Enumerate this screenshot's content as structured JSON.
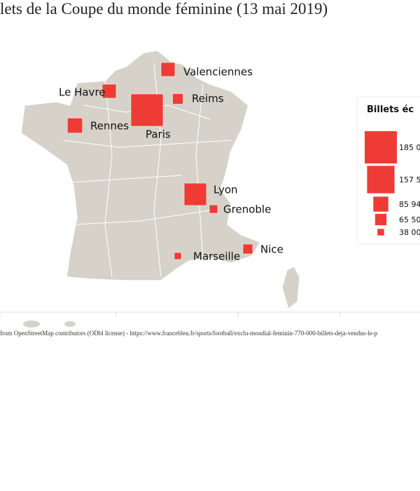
{
  "title": "lets de la Coupe du monde féminine (13 mai 2019)",
  "map": {
    "type": "proportional-squares",
    "color": "#ef3b36",
    "cities": [
      "Valenciennes",
      "Le Havre",
      "Reims",
      "Paris",
      "Rennes",
      "Lyon",
      "Grenoble",
      "Marseille",
      "Nice"
    ],
    "values": [
      80000,
      80000,
      60000,
      185000,
      85940,
      128000,
      48000,
      40000,
      56000
    ]
  },
  "legend": {
    "title": "Billets éc",
    "sizes": [
      {
        "value": 185000,
        "label": "185 0"
      },
      {
        "value": 157500,
        "label": "157 5"
      },
      {
        "value": 85940,
        "label": "85 94"
      },
      {
        "value": 65500,
        "label": "65 50"
      },
      {
        "value": 38000,
        "label": "38 00"
      }
    ]
  },
  "attribution": "from OpenStreetMap contributors (ODbl license) - https://www.francebleu.fr/sports/football/exclu-mondial-feminin-770-000-billets-deja-vendus-le-p"
}
